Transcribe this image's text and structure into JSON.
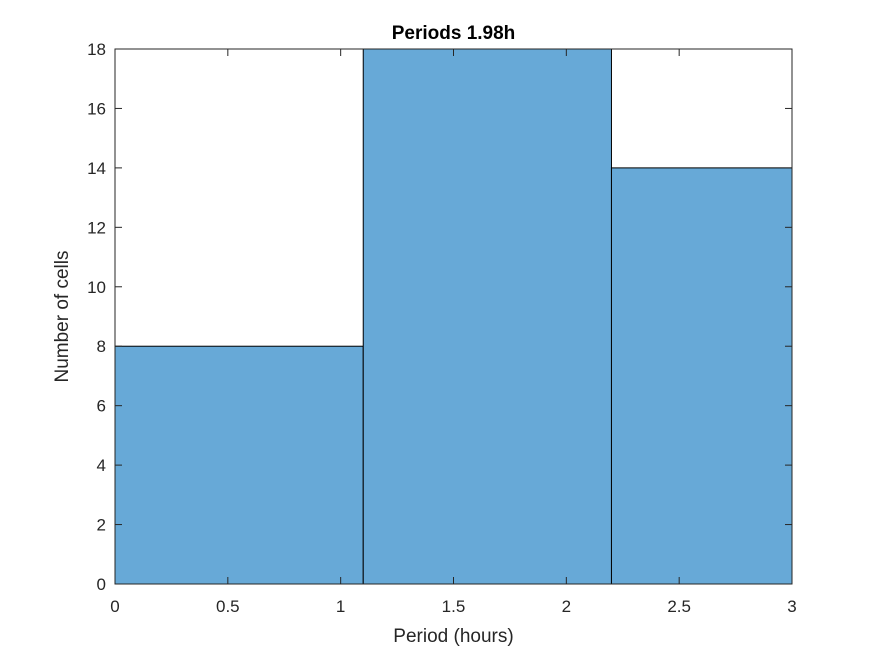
{
  "chart_data": {
    "type": "bar",
    "title": "Periods 1.98h",
    "xlabel": "Period (hours)",
    "ylabel": "Number of cells",
    "xlim": [
      0,
      3
    ],
    "ylim": [
      0,
      18
    ],
    "bins": [
      {
        "start": 0,
        "end": 1.1,
        "value": 8
      },
      {
        "start": 1.1,
        "end": 2.2,
        "value": 18
      },
      {
        "start": 2.2,
        "end": 3.0,
        "value": 14
      }
    ],
    "xticks": [
      0,
      0.5,
      1,
      1.5,
      2,
      2.5,
      3
    ],
    "xtick_labels": [
      "0",
      "0.5",
      "1",
      "1.5",
      "2",
      "2.5",
      "3"
    ],
    "yticks": [
      0,
      2,
      4,
      6,
      8,
      10,
      12,
      14,
      16,
      18
    ],
    "ytick_labels": [
      "0",
      "2",
      "4",
      "6",
      "8",
      "10",
      "12",
      "14",
      "16",
      "18"
    ],
    "bar_color": "#67A9D7",
    "edge_color": "#000000",
    "grid": false,
    "legend": "none"
  }
}
